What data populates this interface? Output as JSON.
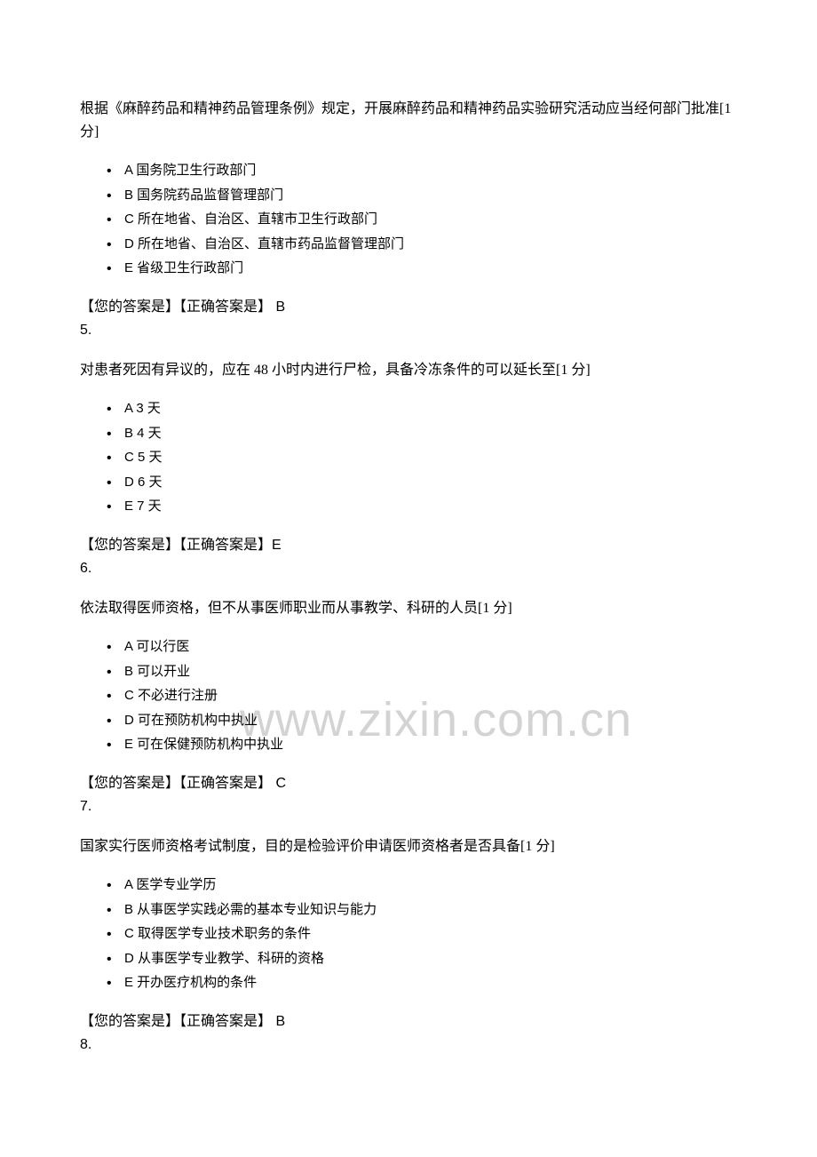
{
  "watermark": "www.zixin.com.cn",
  "ans_prefix_your": "【您的答案是】",
  "ans_prefix_correct": "【正确答案是】",
  "questions": [
    {
      "num": "5.",
      "text": "根据《麻醉药品和精神药品管理条例》规定，开展麻醉药品和精神药品实验研究活动应当经何部门批准[1 分]",
      "options": [
        "A  国务院卫生行政部门",
        "B  国务院药品监督管理部门",
        "C  所在地省、自治区、直辖市卫生行政部门",
        "D  所在地省、自治区、直辖市药品监督管理部门",
        "E  省级卫生行政部门"
      ],
      "correct": " B"
    },
    {
      "num": "6.",
      "text": "对患者死因有异议的，应在 48 小时内进行尸检，具备冷冻条件的可以延长至[1 分]",
      "options": [
        "A 3 天",
        "B 4 天",
        "C 5 天",
        "D 6 天",
        "E 7 天"
      ],
      "correct": "E"
    },
    {
      "num": "7.",
      "text": "依法取得医师资格，但不从事医师职业而从事教学、科研的人员[1 分]",
      "options": [
        "A  可以行医",
        "B  可以开业",
        "C  不必进行注册",
        "D  可在预防机构中执业",
        "E  可在保健预防机构中执业"
      ],
      "correct": " C"
    },
    {
      "num": "8.",
      "text": "国家实行医师资格考试制度，目的是检验评价申请医师资格者是否具备[1 分]",
      "options": [
        "A  医学专业学历",
        "B  从事医学实践必需的基本专业知识与能力",
        "C  取得医学专业技术职务的条件",
        "D  从事医学专业教学、科研的资格",
        "E  开办医疗机构的条件"
      ],
      "correct": " B"
    }
  ]
}
